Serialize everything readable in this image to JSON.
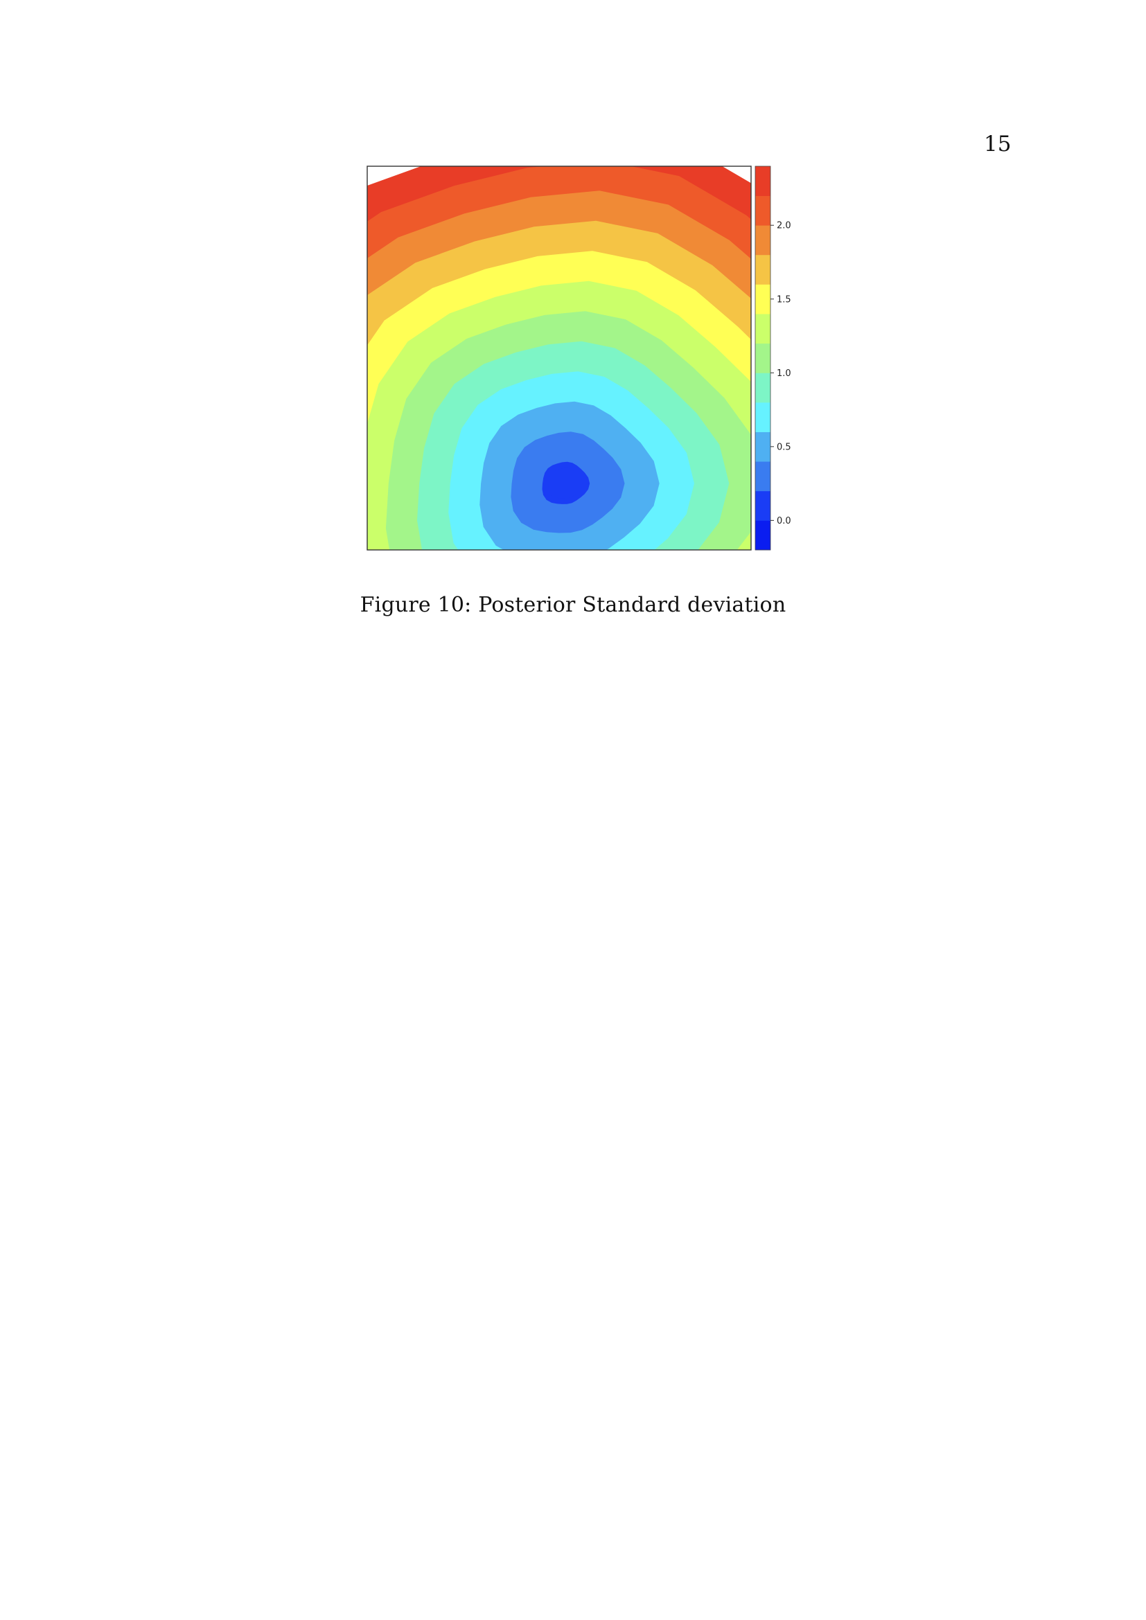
{
  "page": {
    "number": "15"
  },
  "figure": {
    "caption": "Figure 10: Posterior Standard deviation"
  },
  "chart_data": {
    "type": "heatmap",
    "title": "",
    "xlabel": "",
    "ylabel": "",
    "colorbar": {
      "range": [
        -0.2,
        2.4
      ],
      "ticks": [
        0.0,
        0.5,
        1.0,
        1.5,
        2.0
      ],
      "tick_labels": [
        "0.0",
        "0.5",
        "1.0",
        "1.5",
        "2.0"
      ],
      "levels": [
        {
          "from": -0.2,
          "to": 0.0,
          "color": "#0a1df0"
        },
        {
          "from": 0.0,
          "to": 0.2,
          "color": "#1a3df5"
        },
        {
          "from": 0.2,
          "to": 0.4,
          "color": "#3a7cf0"
        },
        {
          "from": 0.4,
          "to": 0.6,
          "color": "#4fb0f2"
        },
        {
          "from": 0.6,
          "to": 0.8,
          "color": "#66f2ff"
        },
        {
          "from": 0.8,
          "to": 1.0,
          "color": "#7df5c6"
        },
        {
          "from": 1.0,
          "to": 1.2,
          "color": "#a3f58a"
        },
        {
          "from": 1.2,
          "to": 1.4,
          "color": "#cbff6a"
        },
        {
          "from": 1.4,
          "to": 1.6,
          "color": "#ffff55"
        },
        {
          "from": 1.6,
          "to": 1.8,
          "color": "#f5c445"
        },
        {
          "from": 1.8,
          "to": 2.0,
          "color": "#f08a36"
        },
        {
          "from": 2.0,
          "to": 2.2,
          "color": "#ee5a2a"
        },
        {
          "from": 2.2,
          "to": 2.4,
          "color": "#e83d27"
        }
      ]
    },
    "field": {
      "minimum_value": -0.1,
      "maximum_value": 2.3,
      "low_region": "lower center",
      "rings_from_center": [
        0.0,
        0.2,
        0.4,
        0.6,
        0.8,
        1.0,
        1.2,
        1.4,
        1.6,
        1.8,
        2.0,
        2.2
      ]
    }
  }
}
